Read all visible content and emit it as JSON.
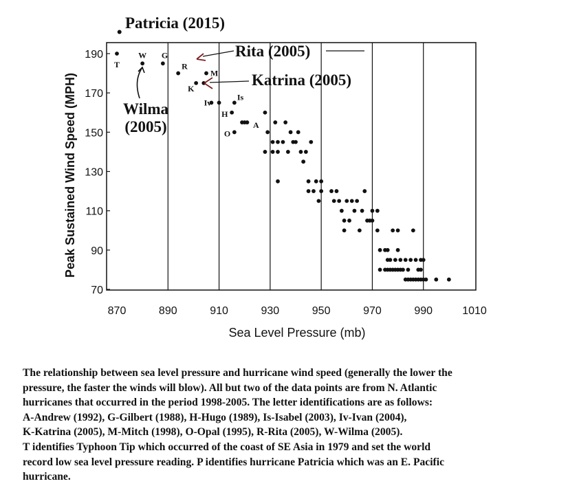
{
  "chart_data": {
    "type": "scatter",
    "xlabel": "Sea Level Pressure (mb)",
    "ylabel": "Peak Sustained Wind Speed (MPH)",
    "xlim": [
      870,
      1010
    ],
    "ylim": [
      70,
      195
    ],
    "x_ticks": [
      "870",
      "890",
      "910",
      "930",
      "950",
      "970",
      "990",
      "1010"
    ],
    "y_ticks": [
      "70",
      "90",
      "110",
      "130",
      "150",
      "170",
      "190"
    ],
    "grid": "vertical lines",
    "marker_color": "#111111",
    "points": [
      {
        "x": 870,
        "y": 190,
        "label": "T",
        "label_color": "#4a55a8"
      },
      {
        "x": 880,
        "y": 185,
        "label": "W"
      },
      {
        "x": 888,
        "y": 185,
        "label": "G"
      },
      {
        "x": 894,
        "y": 180,
        "label": "R"
      },
      {
        "x": 905,
        "y": 180,
        "label": "M"
      },
      {
        "x": 901,
        "y": 175,
        "label": "K"
      },
      {
        "x": 910,
        "y": 165,
        "label": "Iv"
      },
      {
        "x": 915,
        "y": 160,
        "label": "H"
      },
      {
        "x": 919,
        "y": 155,
        "label": "A"
      },
      {
        "x": 916,
        "y": 165,
        "label": "Is"
      },
      {
        "x": 916,
        "y": 150,
        "label": "O"
      },
      {
        "x": 904,
        "y": 175
      },
      {
        "x": 907,
        "y": 165
      },
      {
        "x": 920,
        "y": 155
      },
      {
        "x": 921,
        "y": 155
      },
      {
        "x": 928,
        "y": 160
      },
      {
        "x": 929,
        "y": 150
      },
      {
        "x": 931,
        "y": 145
      },
      {
        "x": 932,
        "y": 155
      },
      {
        "x": 933,
        "y": 145
      },
      {
        "x": 935,
        "y": 145
      },
      {
        "x": 936,
        "y": 155
      },
      {
        "x": 938,
        "y": 150
      },
      {
        "x": 939,
        "y": 145
      },
      {
        "x": 940,
        "y": 145
      },
      {
        "x": 941,
        "y": 150
      },
      {
        "x": 942,
        "y": 140
      },
      {
        "x": 944,
        "y": 140
      },
      {
        "x": 946,
        "y": 145
      },
      {
        "x": 928,
        "y": 140
      },
      {
        "x": 931,
        "y": 140
      },
      {
        "x": 933,
        "y": 140
      },
      {
        "x": 937,
        "y": 140
      },
      {
        "x": 943,
        "y": 135
      },
      {
        "x": 933,
        "y": 125
      },
      {
        "x": 945,
        "y": 125
      },
      {
        "x": 945,
        "y": 120
      },
      {
        "x": 947,
        "y": 120
      },
      {
        "x": 948,
        "y": 125
      },
      {
        "x": 949,
        "y": 115
      },
      {
        "x": 950,
        "y": 120
      },
      {
        "x": 950,
        "y": 125
      },
      {
        "x": 954,
        "y": 120
      },
      {
        "x": 955,
        "y": 115
      },
      {
        "x": 956,
        "y": 120
      },
      {
        "x": 957,
        "y": 115
      },
      {
        "x": 958,
        "y": 110
      },
      {
        "x": 959,
        "y": 105
      },
      {
        "x": 960,
        "y": 115
      },
      {
        "x": 961,
        "y": 105
      },
      {
        "x": 962,
        "y": 115
      },
      {
        "x": 963,
        "y": 110
      },
      {
        "x": 964,
        "y": 115
      },
      {
        "x": 966,
        "y": 110
      },
      {
        "x": 967,
        "y": 120
      },
      {
        "x": 968,
        "y": 105
      },
      {
        "x": 969,
        "y": 105
      },
      {
        "x": 970,
        "y": 110
      },
      {
        "x": 970,
        "y": 105
      },
      {
        "x": 972,
        "y": 110
      },
      {
        "x": 959,
        "y": 100
      },
      {
        "x": 965,
        "y": 100
      },
      {
        "x": 972,
        "y": 100
      },
      {
        "x": 973,
        "y": 90
      },
      {
        "x": 975,
        "y": 90
      },
      {
        "x": 976,
        "y": 85
      },
      {
        "x": 977,
        "y": 85
      },
      {
        "x": 978,
        "y": 100
      },
      {
        "x": 979,
        "y": 85
      },
      {
        "x": 980,
        "y": 100
      },
      {
        "x": 981,
        "y": 85
      },
      {
        "x": 983,
        "y": 85
      },
      {
        "x": 984,
        "y": 80
      },
      {
        "x": 985,
        "y": 85
      },
      {
        "x": 987,
        "y": 85
      },
      {
        "x": 986,
        "y": 100
      },
      {
        "x": 988,
        "y": 80
      },
      {
        "x": 989,
        "y": 85
      },
      {
        "x": 990,
        "y": 85
      },
      {
        "x": 973,
        "y": 80
      },
      {
        "x": 975,
        "y": 80
      },
      {
        "x": 976,
        "y": 80
      },
      {
        "x": 977,
        "y": 80
      },
      {
        "x": 978,
        "y": 80
      },
      {
        "x": 979,
        "y": 80
      },
      {
        "x": 980,
        "y": 80
      },
      {
        "x": 981,
        "y": 80
      },
      {
        "x": 982,
        "y": 80
      },
      {
        "x": 983,
        "y": 75
      },
      {
        "x": 984,
        "y": 75
      },
      {
        "x": 985,
        "y": 75
      },
      {
        "x": 986,
        "y": 75
      },
      {
        "x": 987,
        "y": 75
      },
      {
        "x": 988,
        "y": 75
      },
      {
        "x": 989,
        "y": 75
      },
      {
        "x": 990,
        "y": 75
      },
      {
        "x": 991,
        "y": 75
      },
      {
        "x": 995,
        "y": 75
      },
      {
        "x": 1000,
        "y": 75
      },
      {
        "x": 976,
        "y": 90
      },
      {
        "x": 980,
        "y": 90
      },
      {
        "x": 989,
        "y": 80
      }
    ],
    "annotations": {
      "patricia": {
        "text": "Patricia (2015)",
        "x": 871,
        "y": 201
      },
      "rita": {
        "text": "Rita (2005)",
        "x": 902,
        "y": 184
      },
      "katrina": {
        "text": "Katrina (2005)",
        "x": 901,
        "y": 175
      },
      "wilma_line1": "Wilma",
      "wilma_line2": "(2005)",
      "wilma_target": {
        "x": 880,
        "y": 185
      }
    }
  },
  "caption": {
    "line1": "The relationship between sea level pressure and hurricane wind speed (generally the lower the",
    "line2": "pressure, the faster the winds will blow).  All but two of the data points are from N. Atlantic",
    "line3": "hurricanes that occurred in the period 1998-2005.  The letter identifications are as follows:",
    "line4": "A-Andrew (1992), G-Gilbert (1988), H-Hugo (1989), Is-Isabel (2003), Iv-Ivan (2004),",
    "line5": "K-Katrina (2005), M-Mitch (1998), O-Opal (1995), R-Rita (2005), W-Wilma (2005).",
    "line6": "T identifies Typhoon Tip which occurred of the coast of SE Asia in 1979 and set the world",
    "line7": "record low sea level pressure reading.  P identifies hurricane Patricia which was an E. Pacific",
    "line8": "hurricane."
  }
}
